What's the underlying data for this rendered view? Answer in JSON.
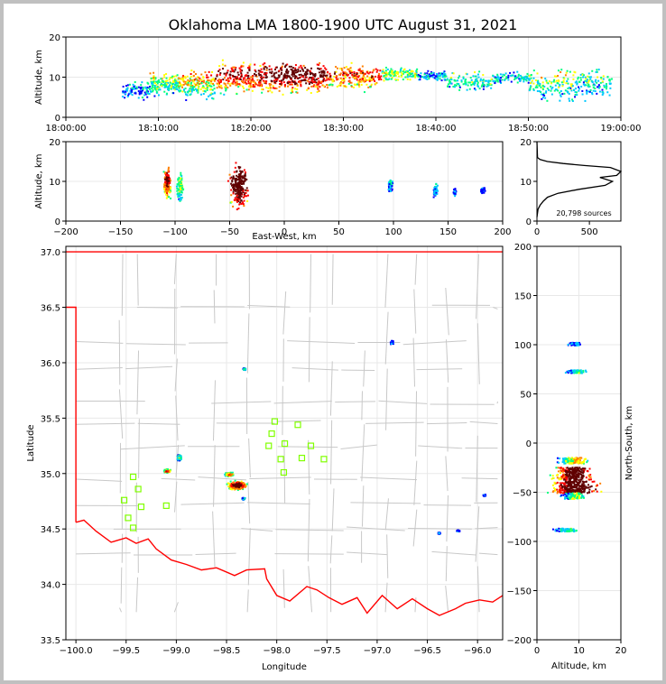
{
  "title": "Oklahoma LMA 1800-1900 UTC August 31, 2021",
  "colors": {
    "axis": "#000000",
    "grid": "#e8e8e8",
    "state_border": "#ff0000",
    "county_lines": "#c8c8c8",
    "stations": "#80ff00",
    "density_ramp": [
      "#0000ff",
      "#00c8ff",
      "#00ff80",
      "#ffff00",
      "#ff8000",
      "#ff0000",
      "#600000"
    ],
    "histogram_line": "#000000"
  },
  "chart_data": [
    {
      "id": "time_height",
      "type": "scatter",
      "xlabel": "",
      "ylabel": "Altitude, km",
      "xlim": [
        "18:00:00",
        "19:00:00"
      ],
      "x_ticks": [
        "18:00:00",
        "18:10:00",
        "18:20:00",
        "18:30:00",
        "18:40:00",
        "18:50:00",
        "19:00:00"
      ],
      "ylim": [
        0,
        20
      ],
      "y_ticks": [
        "0",
        "10",
        "20"
      ],
      "grid": true,
      "clusters": [
        {
          "t_start_min": 6,
          "t_end_min": 9,
          "alt_low_km": 4,
          "alt_high_km": 10,
          "intensity": 0.2
        },
        {
          "t_start_min": 9,
          "t_end_min": 12,
          "alt_low_km": 5,
          "alt_high_km": 12,
          "intensity": 0.45
        },
        {
          "t_start_min": 12,
          "t_end_min": 16,
          "alt_low_km": 4,
          "alt_high_km": 13,
          "intensity": 0.6
        },
        {
          "t_start_min": 16,
          "t_end_min": 22,
          "alt_low_km": 5,
          "alt_high_km": 15,
          "intensity": 0.85
        },
        {
          "t_start_min": 22,
          "t_end_min": 28,
          "alt_low_km": 5,
          "alt_high_km": 15,
          "intensity": 1.0
        },
        {
          "t_start_min": 28,
          "t_end_min": 34,
          "alt_low_km": 6,
          "alt_high_km": 14,
          "intensity": 0.7
        },
        {
          "t_start_min": 34,
          "t_end_min": 38,
          "alt_low_km": 9,
          "alt_high_km": 13,
          "intensity": 0.35
        },
        {
          "t_start_min": 38,
          "t_end_min": 41,
          "alt_low_km": 9,
          "alt_high_km": 12,
          "intensity": 0.15
        },
        {
          "t_start_min": 41,
          "t_end_min": 46,
          "alt_low_km": 6,
          "alt_high_km": 12,
          "intensity": 0.3
        },
        {
          "t_start_min": 46,
          "t_end_min": 50,
          "alt_low_km": 8,
          "alt_high_km": 12,
          "intensity": 0.2
        },
        {
          "t_start_min": 50,
          "t_end_min": 55,
          "alt_low_km": 3,
          "alt_high_km": 13,
          "intensity": 0.4
        },
        {
          "t_start_min": 55,
          "t_end_min": 59,
          "alt_low_km": 4,
          "alt_high_km": 13,
          "intensity": 0.3
        }
      ]
    },
    {
      "id": "ew_height",
      "type": "scatter",
      "xlabel": "East-West, km",
      "ylabel": "Altitude, km",
      "xlim": [
        -200,
        200
      ],
      "x_ticks": [
        "−200",
        "−150",
        "−100",
        "−50",
        "0",
        "50",
        "100",
        "150",
        "200"
      ],
      "ylim": [
        0,
        20
      ],
      "y_ticks": [
        "0",
        "10",
        "20"
      ],
      "grid": true,
      "clusters": [
        {
          "x_start_km": -112,
          "x_end_km": -104,
          "alt_low_km": 5,
          "alt_high_km": 14,
          "intensity": 0.8
        },
        {
          "x_start_km": -100,
          "x_end_km": -92,
          "alt_low_km": 4,
          "alt_high_km": 13,
          "intensity": 0.35
        },
        {
          "x_start_km": -54,
          "x_end_km": -30,
          "alt_low_km": 2,
          "alt_high_km": 16,
          "intensity": 1.0
        },
        {
          "x_start_km": 94,
          "x_end_km": 99,
          "alt_low_km": 7,
          "alt_high_km": 11,
          "intensity": 0.2
        },
        {
          "x_start_km": 135,
          "x_end_km": 140,
          "alt_low_km": 6,
          "alt_high_km": 10,
          "intensity": 0.2
        },
        {
          "x_start_km": 154,
          "x_end_km": 157,
          "alt_low_km": 6,
          "alt_high_km": 9,
          "intensity": 0.1
        },
        {
          "x_start_km": 178,
          "x_end_km": 184,
          "alt_low_km": 7,
          "alt_high_km": 9,
          "intensity": 0.1
        }
      ]
    },
    {
      "id": "altitude_histogram",
      "type": "line",
      "xlabel": "",
      "ylabel": "",
      "xlim": [
        0,
        800
      ],
      "x_ticks": [
        "0",
        "500"
      ],
      "ylim": [
        0,
        20
      ],
      "y_ticks": [
        "0",
        "10",
        "20"
      ],
      "annotation": "20,798 sources",
      "series": [
        {
          "x": [
            0,
            10,
            30,
            60,
            100,
            200,
            400,
            650,
            720,
            600,
            760,
            800,
            700,
            450,
            250,
            100,
            30,
            5,
            0
          ],
          "y": [
            1,
            3,
            4,
            5,
            6,
            7,
            8,
            9,
            10,
            11,
            11.5,
            12.5,
            13.5,
            14,
            14.5,
            15,
            15.5,
            16,
            20
          ]
        }
      ]
    },
    {
      "id": "plan_view",
      "type": "scatter",
      "xlabel": "Longitude",
      "ylabel": "Latitude",
      "xlim": [
        -100.1,
        -95.75
      ],
      "x_ticks": [
        "−100.0",
        "−99.5",
        "−99.0",
        "−98.5",
        "−98.0",
        "−97.5",
        "−97.0",
        "−96.5",
        "−96.0"
      ],
      "ylim": [
        33.5,
        37.05
      ],
      "y_ticks": [
        "33.5",
        "34.0",
        "34.5",
        "35.0",
        "35.5",
        "36.0",
        "36.5",
        "37.0"
      ],
      "grid": true,
      "stations": [
        {
          "lon": -99.43,
          "lat": 34.97
        },
        {
          "lon": -99.38,
          "lat": 34.86
        },
        {
          "lon": -99.52,
          "lat": 34.76
        },
        {
          "lon": -99.35,
          "lat": 34.7
        },
        {
          "lon": -99.48,
          "lat": 34.6
        },
        {
          "lon": -99.43,
          "lat": 34.51
        },
        {
          "lon": -99.1,
          "lat": 34.71
        },
        {
          "lon": -98.02,
          "lat": 35.47
        },
        {
          "lon": -97.79,
          "lat": 35.44
        },
        {
          "lon": -98.05,
          "lat": 35.36
        },
        {
          "lon": -97.92,
          "lat": 35.27
        },
        {
          "lon": -98.08,
          "lat": 35.25
        },
        {
          "lon": -97.66,
          "lat": 35.25
        },
        {
          "lon": -97.96,
          "lat": 35.13
        },
        {
          "lon": -97.75,
          "lat": 35.14
        },
        {
          "lon": -97.53,
          "lat": 35.13
        },
        {
          "lon": -97.93,
          "lat": 35.01
        }
      ],
      "clusters": [
        {
          "lon": -98.4,
          "lat": 34.9,
          "spread_lon": 0.12,
          "spread_lat": 0.05,
          "intensity": 1.0
        },
        {
          "lon": -98.48,
          "lat": 35.0,
          "spread_lon": 0.05,
          "spread_lat": 0.02,
          "intensity": 0.8
        },
        {
          "lon": -99.1,
          "lat": 35.03,
          "spread_lon": 0.04,
          "spread_lat": 0.02,
          "intensity": 0.8
        },
        {
          "lon": -98.98,
          "lat": 35.15,
          "spread_lon": 0.03,
          "spread_lat": 0.03,
          "intensity": 0.5
        },
        {
          "lon": -98.33,
          "lat": 35.95,
          "spread_lon": 0.02,
          "spread_lat": 0.01,
          "intensity": 0.3
        },
        {
          "lon": -96.86,
          "lat": 36.19,
          "spread_lon": 0.02,
          "spread_lat": 0.02,
          "intensity": 0.2
        },
        {
          "lon": -96.2,
          "lat": 34.49,
          "spread_lon": 0.02,
          "spread_lat": 0.01,
          "intensity": 0.1
        },
        {
          "lon": -96.39,
          "lat": 34.47,
          "spread_lon": 0.02,
          "spread_lat": 0.01,
          "intensity": 0.1
        },
        {
          "lon": -95.94,
          "lat": 34.81,
          "spread_lon": 0.02,
          "spread_lat": 0.01,
          "intensity": 0.1
        },
        {
          "lon": -98.34,
          "lat": 34.78,
          "spread_lon": 0.02,
          "spread_lat": 0.01,
          "intensity": 0.3
        }
      ],
      "state_border": {
        "north": [
          [
            -100.1,
            37.0
          ],
          [
            -95.75,
            37.0
          ]
        ],
        "west": [
          [
            -100.1,
            36.5
          ],
          [
            -100.0,
            36.5
          ],
          [
            -100.0,
            34.56
          ]
        ],
        "red_river": [
          [
            -100.0,
            34.56
          ],
          [
            -99.92,
            34.58
          ],
          [
            -99.8,
            34.48
          ],
          [
            -99.65,
            34.38
          ],
          [
            -99.5,
            34.42
          ],
          [
            -99.4,
            34.37
          ],
          [
            -99.28,
            34.41
          ],
          [
            -99.2,
            34.32
          ],
          [
            -99.05,
            34.22
          ],
          [
            -98.9,
            34.18
          ],
          [
            -98.75,
            34.13
          ],
          [
            -98.6,
            34.15
          ],
          [
            -98.42,
            34.08
          ],
          [
            -98.3,
            34.13
          ],
          [
            -98.12,
            34.14
          ],
          [
            -98.1,
            34.05
          ],
          [
            -98.0,
            33.9
          ],
          [
            -97.87,
            33.85
          ],
          [
            -97.7,
            33.98
          ],
          [
            -97.6,
            33.95
          ],
          [
            -97.48,
            33.88
          ],
          [
            -97.35,
            33.82
          ],
          [
            -97.2,
            33.88
          ],
          [
            -97.1,
            33.74
          ],
          [
            -96.95,
            33.9
          ],
          [
            -96.8,
            33.78
          ],
          [
            -96.65,
            33.87
          ],
          [
            -96.5,
            33.78
          ],
          [
            -96.38,
            33.72
          ],
          [
            -96.22,
            33.78
          ],
          [
            -96.12,
            33.83
          ],
          [
            -95.98,
            33.86
          ],
          [
            -95.85,
            33.84
          ],
          [
            -95.75,
            33.9
          ]
        ]
      }
    },
    {
      "id": "ns_height",
      "type": "scatter",
      "xlabel": "Altitude, km",
      "ylabel": "North-South, km",
      "xlim": [
        0,
        20
      ],
      "x_ticks": [
        "0",
        "10",
        "20"
      ],
      "ylim": [
        -200,
        200
      ],
      "y_ticks": [
        "−200",
        "−150",
        "−100",
        "−50",
        "0",
        "50",
        "100",
        "150",
        "200"
      ],
      "grid": true,
      "clusters": [
        {
          "ns_low_km": 100,
          "ns_high_km": 103,
          "alt_low_km": 7,
          "alt_high_km": 11,
          "intensity": 0.15
        },
        {
          "ns_low_km": 72,
          "ns_high_km": 75,
          "alt_low_km": 6,
          "alt_high_km": 12,
          "intensity": 0.25
        },
        {
          "ns_low_km": -20,
          "ns_high_km": -14,
          "alt_low_km": 4,
          "alt_high_km": 13,
          "intensity": 0.45
        },
        {
          "ns_low_km": -37,
          "ns_high_km": -24,
          "alt_low_km": 2,
          "alt_high_km": 14,
          "intensity": 0.9
        },
        {
          "ns_low_km": -50,
          "ns_high_km": -38,
          "alt_low_km": 1,
          "alt_high_km": 16,
          "intensity": 1.0
        },
        {
          "ns_low_km": -56,
          "ns_high_km": -50,
          "alt_low_km": 5,
          "alt_high_km": 12,
          "intensity": 0.35
        },
        {
          "ns_low_km": -89,
          "ns_high_km": -86,
          "alt_low_km": 3,
          "alt_high_km": 10,
          "intensity": 0.25
        }
      ]
    }
  ]
}
